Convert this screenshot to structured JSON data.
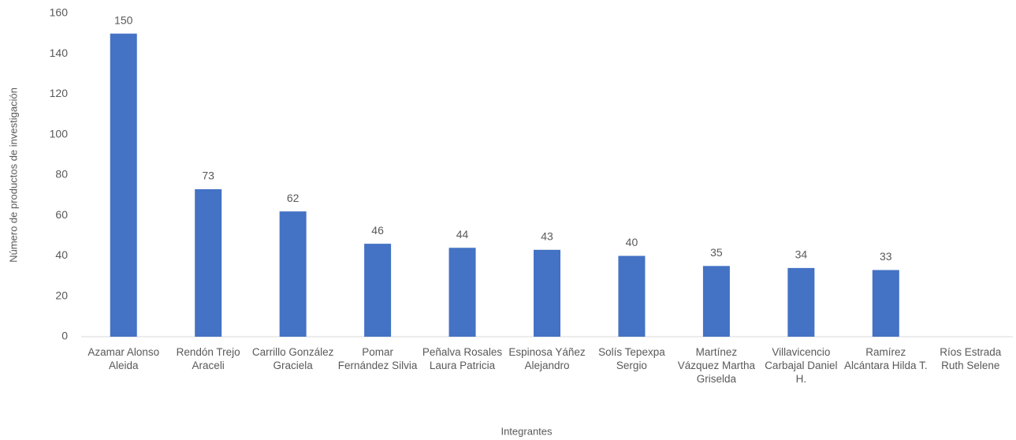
{
  "chart_data": {
    "type": "bar",
    "xlabel": "Integrantes",
    "ylabel": "Número de productos de investigación",
    "categories": [
      "Azamar Alonso Aleida",
      "Rendón Trejo Araceli",
      "Carrillo González Graciela",
      "Pomar Fernández Silvia",
      "Peñalva Rosales Laura Patricia",
      "Espinosa Yáñez Alejandro",
      "Solís Tepexpa Sergio",
      "Martínez Vázquez Martha Griselda",
      "Villavicencio Carbajal Daniel H.",
      "Ramírez Alcántara Hilda T.",
      "Ríos Estrada Ruth Selene"
    ],
    "values": [
      150,
      73,
      62,
      46,
      44,
      43,
      40,
      35,
      34,
      33,
      null
    ],
    "color": "#4472c4",
    "ylim": [
      0,
      160
    ],
    "yticks": [
      0,
      20,
      40,
      60,
      80,
      100,
      120,
      140,
      160
    ],
    "grid": false
  }
}
